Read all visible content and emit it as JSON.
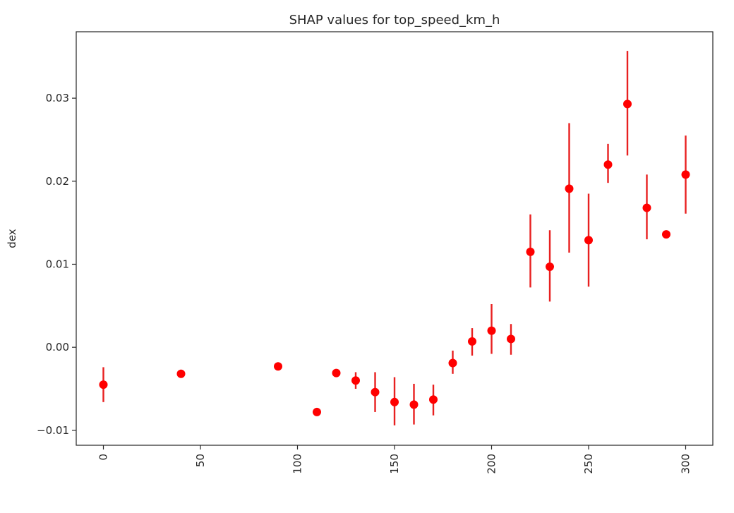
{
  "chart_data": {
    "type": "scatter",
    "title": "SHAP values for top_speed_km_h",
    "xlabel": "",
    "ylabel": "dex",
    "xlim": [
      -14,
      314
    ],
    "ylim": [
      -0.0118,
      0.038
    ],
    "xticks": [
      0,
      50,
      100,
      150,
      200,
      250,
      300
    ],
    "xtick_labels": [
      "0",
      "50",
      "100",
      "150",
      "200",
      "250",
      "300"
    ],
    "xtick_rotation": -90,
    "yticks": [
      -0.01,
      0.0,
      0.01,
      0.02,
      0.03
    ],
    "ytick_labels": [
      "−0.01",
      "0.00",
      "0.01",
      "0.02",
      "0.03"
    ],
    "grid": false,
    "marker_color": "#ff0000",
    "errorbar_color": "#e82020",
    "points": [
      {
        "x": 0,
        "y": -0.0045,
        "ylow": -0.0066,
        "yhigh": -0.0024
      },
      {
        "x": 40,
        "y": -0.0032,
        "ylow": -0.0032,
        "yhigh": -0.0032
      },
      {
        "x": 90,
        "y": -0.0023,
        "ylow": -0.0023,
        "yhigh": -0.0023
      },
      {
        "x": 110,
        "y": -0.0078,
        "ylow": -0.0078,
        "yhigh": -0.0078
      },
      {
        "x": 120,
        "y": -0.0031,
        "ylow": -0.0031,
        "yhigh": -0.0031
      },
      {
        "x": 130,
        "y": -0.004,
        "ylow": -0.005,
        "yhigh": -0.003
      },
      {
        "x": 140,
        "y": -0.0054,
        "ylow": -0.0078,
        "yhigh": -0.003
      },
      {
        "x": 150,
        "y": -0.0066,
        "ylow": -0.0094,
        "yhigh": -0.0036
      },
      {
        "x": 160,
        "y": -0.0069,
        "ylow": -0.0093,
        "yhigh": -0.0044
      },
      {
        "x": 170,
        "y": -0.0063,
        "ylow": -0.0082,
        "yhigh": -0.0045
      },
      {
        "x": 180,
        "y": -0.0019,
        "ylow": -0.0032,
        "yhigh": -0.0004
      },
      {
        "x": 190,
        "y": 0.0007,
        "ylow": -0.001,
        "yhigh": 0.0023
      },
      {
        "x": 200,
        "y": 0.002,
        "ylow": -0.0008,
        "yhigh": 0.0052
      },
      {
        "x": 210,
        "y": 0.001,
        "ylow": -0.0009,
        "yhigh": 0.0028
      },
      {
        "x": 220,
        "y": 0.0115,
        "ylow": 0.0072,
        "yhigh": 0.016
      },
      {
        "x": 230,
        "y": 0.0097,
        "ylow": 0.0055,
        "yhigh": 0.0141
      },
      {
        "x": 240,
        "y": 0.0191,
        "ylow": 0.0114,
        "yhigh": 0.027
      },
      {
        "x": 250,
        "y": 0.0129,
        "ylow": 0.0073,
        "yhigh": 0.0185
      },
      {
        "x": 260,
        "y": 0.022,
        "ylow": 0.0198,
        "yhigh": 0.0245
      },
      {
        "x": 270,
        "y": 0.0293,
        "ylow": 0.0231,
        "yhigh": 0.0357
      },
      {
        "x": 280,
        "y": 0.0168,
        "ylow": 0.013,
        "yhigh": 0.0208
      },
      {
        "x": 290,
        "y": 0.0136,
        "ylow": 0.0136,
        "yhigh": 0.0136
      },
      {
        "x": 300,
        "y": 0.0208,
        "ylow": 0.0161,
        "yhigh": 0.0255
      }
    ]
  }
}
